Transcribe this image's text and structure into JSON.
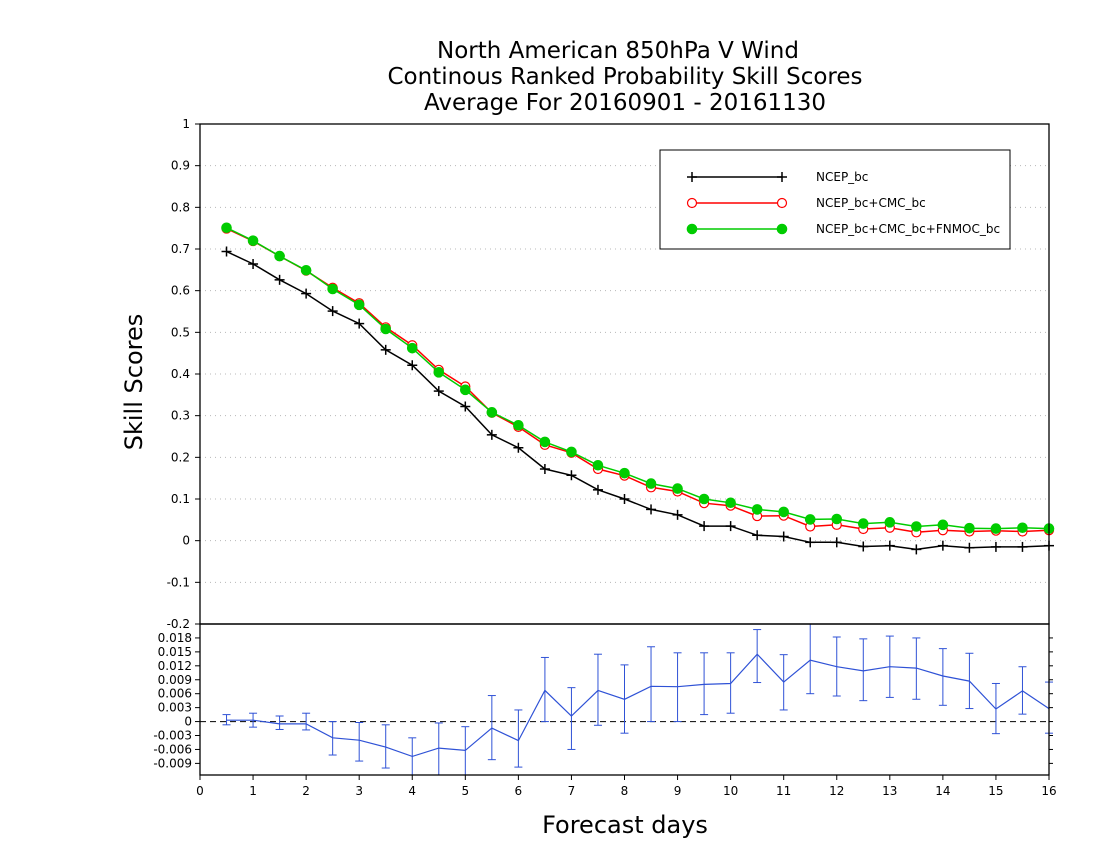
{
  "chart_data": [
    {
      "type": "line",
      "title_lines": [
        "North American 850hPa V Wind",
        "Continous Ranked Probability Skill Scores",
        "Average For 20160901 - 20161130"
      ],
      "xlabel": "Forecast days",
      "ylabel": "Skill Scores",
      "xlim": [
        0,
        16
      ],
      "ylim": [
        -0.2,
        1
      ],
      "x_ticks": [
        "0",
        "1",
        "2",
        "3",
        "4",
        "5",
        "6",
        "7",
        "8",
        "9",
        "10",
        "11",
        "12",
        "13",
        "14",
        "15",
        "16"
      ],
      "y_ticks": [
        "1",
        "0.9",
        "0.8",
        "0.7",
        "0.6",
        "0.5",
        "0.4",
        "0.3",
        "0.2",
        "0.1",
        "0",
        "-0.1",
        "-0.2"
      ],
      "grid": "horizontal dotted",
      "legend_position": "top-right",
      "x": [
        0.5,
        1,
        1.5,
        2,
        2.5,
        3,
        3.5,
        4,
        4.5,
        5,
        5.5,
        6,
        6.5,
        7,
        7.5,
        8,
        8.5,
        9,
        9.5,
        10,
        10.5,
        11,
        11.5,
        12,
        12.5,
        13,
        13.5,
        14,
        14.5,
        15,
        15.5,
        16
      ],
      "series": [
        {
          "name": "NCEP_bc",
          "color": "#000000",
          "marker": "plus",
          "values": [
            0.694,
            0.664,
            0.626,
            0.593,
            0.551,
            0.521,
            0.458,
            0.421,
            0.359,
            0.322,
            0.254,
            0.223,
            0.172,
            0.157,
            0.122,
            0.1,
            0.075,
            0.062,
            0.035,
            0.035,
            0.013,
            0.01,
            -0.004,
            -0.004,
            -0.014,
            -0.012,
            -0.021,
            -0.012,
            -0.017,
            -0.015,
            -0.015,
            -0.012
          ]
        },
        {
          "name": "NCEP_bc+CMC_bc",
          "color": "#ff0000",
          "marker": "open-circle",
          "values": [
            0.749,
            0.719,
            0.683,
            0.648,
            0.607,
            0.57,
            0.512,
            0.469,
            0.41,
            0.37,
            0.307,
            0.273,
            0.23,
            0.211,
            0.172,
            0.156,
            0.128,
            0.118,
            0.09,
            0.084,
            0.059,
            0.06,
            0.034,
            0.038,
            0.028,
            0.031,
            0.02,
            0.025,
            0.022,
            0.024,
            0.022,
            0.025
          ]
        },
        {
          "name": "NCEP_bc+CMC_bc+FNMOC_bc",
          "color": "#00cc00",
          "marker": "filled-circle",
          "values": [
            0.751,
            0.72,
            0.683,
            0.649,
            0.604,
            0.566,
            0.508,
            0.462,
            0.404,
            0.362,
            0.308,
            0.277,
            0.237,
            0.213,
            0.181,
            0.162,
            0.137,
            0.125,
            0.1,
            0.091,
            0.075,
            0.069,
            0.051,
            0.052,
            0.041,
            0.044,
            0.034,
            0.038,
            0.03,
            0.029,
            0.031,
            0.029
          ]
        }
      ]
    },
    {
      "type": "line",
      "xlim": [
        0,
        16
      ],
      "ylim": [
        -0.0115,
        0.021
      ],
      "y_ticks": [
        "0.018",
        "0.015",
        "0.012",
        "0.009",
        "0.006",
        "0.003",
        "0",
        "-0.003",
        "-0.006",
        "-0.009"
      ],
      "reference_line": 0,
      "x": [
        0.5,
        1,
        1.5,
        2,
        2.5,
        3,
        3.5,
        4,
        4.5,
        5,
        5.5,
        6,
        6.5,
        7,
        7.5,
        8,
        8.5,
        9,
        9.5,
        10,
        10.5,
        11,
        11.5,
        12,
        12.5,
        13,
        13.5,
        14,
        14.5,
        15,
        15.5,
        16
      ],
      "series": [
        {
          "color": "#2f52d6",
          "marker": "none",
          "values": [
            0.0003,
            0.0003,
            -0.0005,
            -0.0005,
            -0.0035,
            -0.004,
            -0.0055,
            -0.0075,
            -0.0057,
            -0.0062,
            -0.0014,
            -0.0041,
            0.0067,
            0.0012,
            0.0067,
            0.0048,
            0.0076,
            0.0075,
            0.008,
            0.0082,
            0.0145,
            0.0085,
            0.0132,
            0.0118,
            0.0109,
            0.0118,
            0.0115,
            0.0098,
            0.0087,
            0.0027,
            0.0066,
            0.0028
          ],
          "error_low": [
            -0.0007,
            -0.0012,
            -0.0017,
            -0.0018,
            -0.0072,
            -0.0085,
            -0.01,
            -0.0115,
            -0.0115,
            -0.0115,
            -0.0082,
            -0.0098,
            0,
            -0.006,
            -0.0008,
            -0.0025,
            0,
            0,
            0.0015,
            0.0018,
            0.0084,
            0.0025,
            0.006,
            0.0055,
            0.0045,
            0.0052,
            0.0048,
            0.0035,
            0.0028,
            -0.0026,
            0.0016,
            -0.0025
          ],
          "error_high": [
            0.0015,
            0.0018,
            0.0012,
            0.0018,
            0,
            -0.0002,
            -0.0007,
            -0.0035,
            -0.0003,
            -0.0011,
            0.0056,
            0.0025,
            0.0138,
            0.0073,
            0.0145,
            0.0122,
            0.0161,
            0.0148,
            0.0148,
            0.0148,
            0.0198,
            0.0144,
            0.021,
            0.0182,
            0.0178,
            0.0184,
            0.018,
            0.0157,
            0.0147,
            0.0082,
            0.0118,
            0.0085
          ]
        }
      ]
    }
  ]
}
